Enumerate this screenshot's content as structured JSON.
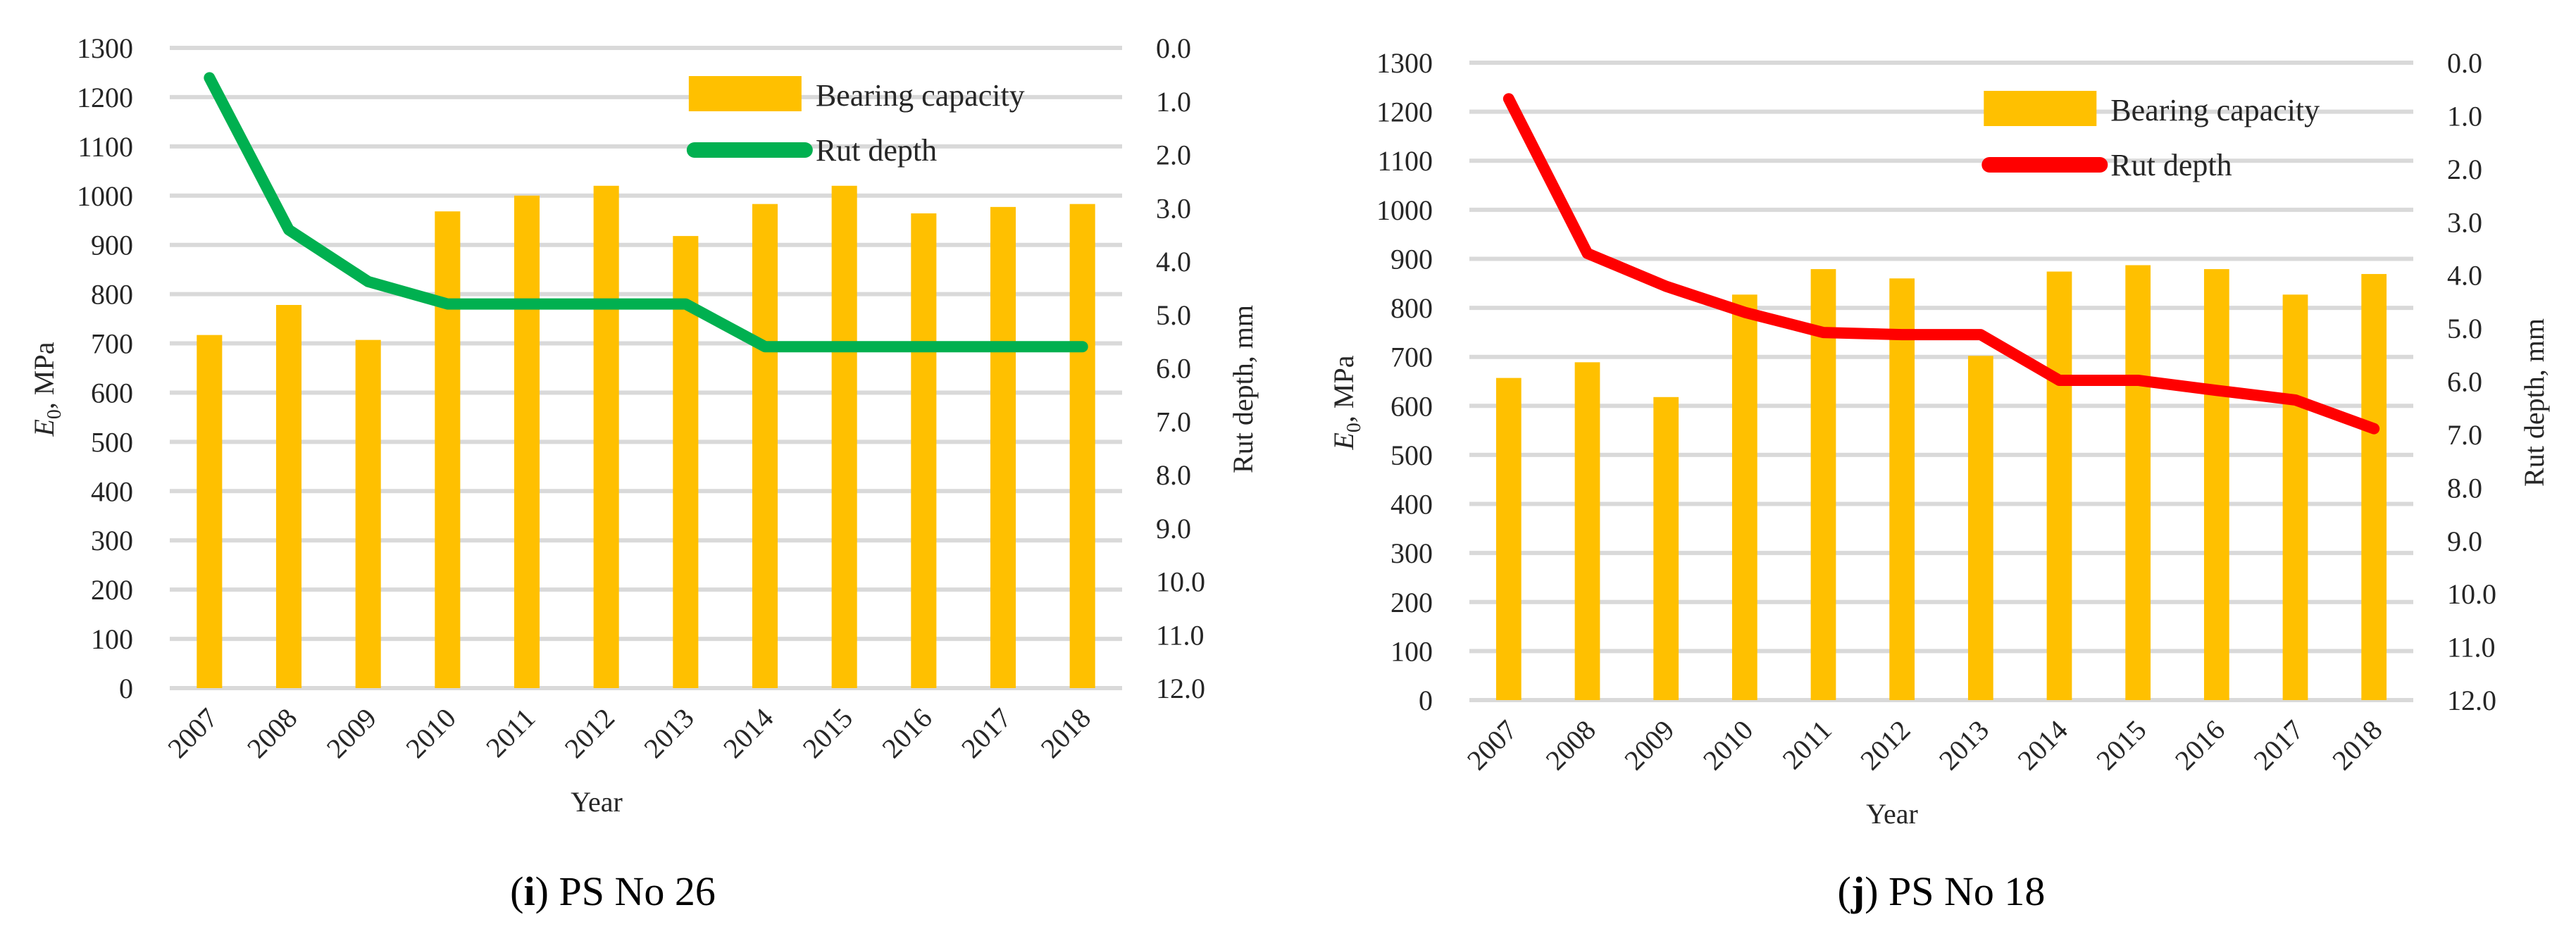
{
  "chart_data": [
    {
      "type": "bar+line",
      "caption_letter": "i",
      "caption_text": "PS No 26",
      "xlabel": "Year",
      "ylabel_symbol": "E",
      "ylabel_sub": "0",
      "ylabel_rest": ", MPa",
      "y2label": "Rut depth, mm",
      "categories": [
        "2007",
        "2008",
        "2009",
        "2010",
        "2011",
        "2012",
        "2013",
        "2014",
        "2015",
        "2016",
        "2017",
        "2018"
      ],
      "ylim": [
        0,
        1300
      ],
      "yticks": [
        "0",
        "100",
        "200",
        "300",
        "400",
        "500",
        "600",
        "700",
        "800",
        "900",
        "1000",
        "1100",
        "1200",
        "1300"
      ],
      "y2lim": [
        0,
        12
      ],
      "y2_inverted": true,
      "y2ticks": [
        "0.0",
        "1.0",
        "2.0",
        "3.0",
        "4.0",
        "5.0",
        "6.0",
        "7.0",
        "8.0",
        "9.0",
        "10.0",
        "11.0",
        "12.0"
      ],
      "grid": true,
      "legend_position": "top-right",
      "series": [
        {
          "name": "Bearing capacity",
          "type": "bar",
          "color": "#FFC000",
          "axis": "left",
          "values": [
            717,
            778,
            707,
            968,
            1000,
            1020,
            918,
            983,
            1020,
            964,
            977,
            983
          ]
        },
        {
          "name": "Rut depth",
          "type": "line",
          "color": "#00B050",
          "axis": "right",
          "values": [
            0.56,
            3.41,
            4.38,
            4.8,
            4.8,
            4.8,
            4.8,
            5.6,
            5.6,
            5.6,
            5.6,
            5.6
          ]
        }
      ]
    },
    {
      "type": "bar+line",
      "caption_letter": "j",
      "caption_text": "PS No 18",
      "xlabel": "Year",
      "ylabel_symbol": "E",
      "ylabel_sub": "0",
      "ylabel_rest": ", MPa",
      "y2label": "Rut depth, mm",
      "categories": [
        "2007",
        "2008",
        "2009",
        "2010",
        "2011",
        "2012",
        "2013",
        "2014",
        "2015",
        "2016",
        "2017",
        "2018"
      ],
      "ylim": [
        0,
        1300
      ],
      "yticks": [
        "0",
        "100",
        "200",
        "300",
        "400",
        "500",
        "600",
        "700",
        "800",
        "900",
        "1000",
        "1100",
        "1200",
        "1300"
      ],
      "y2lim": [
        0,
        12
      ],
      "y2_inverted": true,
      "y2ticks": [
        "0.0",
        "1.0",
        "2.0",
        "3.0",
        "4.0",
        "5.0",
        "6.0",
        "7.0",
        "8.0",
        "9.0",
        "10.0",
        "11.0",
        "12.0"
      ],
      "grid": true,
      "legend_position": "top-right",
      "series": [
        {
          "name": "Bearing capacity",
          "type": "bar",
          "color": "#FFC000",
          "axis": "left",
          "values": [
            657,
            689,
            618,
            827,
            879,
            860,
            702,
            874,
            887,
            879,
            827,
            869
          ]
        },
        {
          "name": "Rut depth",
          "type": "line",
          "color": "#FF0000",
          "axis": "right",
          "values": [
            0.68,
            3.59,
            4.21,
            4.7,
            5.08,
            5.12,
            5.12,
            5.98,
            5.98,
            6.17,
            6.35,
            6.89
          ]
        }
      ]
    }
  ]
}
